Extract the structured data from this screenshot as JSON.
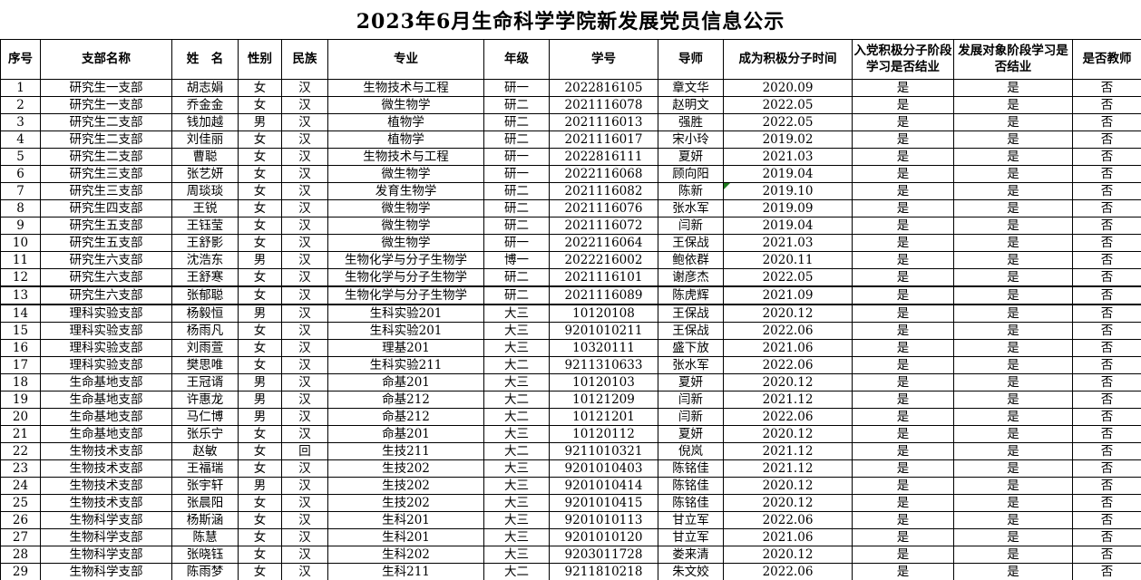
{
  "title": "2023年6月生命科学学院新发展党员信息公示",
  "table": {
    "columns": [
      "序号",
      "支部名称",
      "姓　名",
      "性别",
      "民族",
      "专业",
      "年级",
      "学号",
      "导师",
      "成为积极分子时间",
      "入党积极分子阶段学习是否结业",
      "发展对象阶段学习是否结业",
      "是否教师"
    ],
    "rows": [
      [
        "1",
        "研究生一支部",
        "胡志娟",
        "女",
        "汉",
        "生物技术与工程",
        "研一",
        "2022816105",
        "章文华",
        "2020.09",
        "是",
        "是",
        "否"
      ],
      [
        "2",
        "研究生一支部",
        "乔金金",
        "女",
        "汉",
        "微生物学",
        "研二",
        "2021116078",
        "赵明文",
        "2022.05",
        "是",
        "是",
        "否"
      ],
      [
        "3",
        "研究生二支部",
        "钱加越",
        "男",
        "汉",
        "植物学",
        "研二",
        "2021116013",
        "强胜",
        "2022.05",
        "是",
        "是",
        "否"
      ],
      [
        "4",
        "研究生二支部",
        "刘佳丽",
        "女",
        "汉",
        "植物学",
        "研二",
        "2021116017",
        "宋小玲",
        "2019.02",
        "是",
        "是",
        "否"
      ],
      [
        "5",
        "研究生二支部",
        "曹聪",
        "女",
        "汉",
        "生物技术与工程",
        "研一",
        "2022816111",
        "夏妍",
        "2021.03",
        "是",
        "是",
        "否"
      ],
      [
        "6",
        "研究生三支部",
        "张艺妍",
        "女",
        "汉",
        "微生物学",
        "研一",
        "2022116068",
        "顾向阳",
        "2019.04",
        "是",
        "是",
        "否"
      ],
      [
        "7",
        "研究生三支部",
        "周琰琰",
        "女",
        "汉",
        "发育生物学",
        "研二",
        "2021116082",
        "陈新",
        "2019.10",
        "是",
        "是",
        "否"
      ],
      [
        "8",
        "研究生四支部",
        "王锐",
        "女",
        "汉",
        "微生物学",
        "研二",
        "2021116076",
        "张水军",
        "2019.09",
        "是",
        "是",
        "否"
      ],
      [
        "9",
        "研究生五支部",
        "王钰莹",
        "女",
        "汉",
        "微生物学",
        "研二",
        "2021116072",
        "闫新",
        "2019.04",
        "是",
        "是",
        "否"
      ],
      [
        "10",
        "研究生五支部",
        "王舒影",
        "女",
        "汉",
        "微生物学",
        "研一",
        "2022116064",
        "王保战",
        "2021.03",
        "是",
        "是",
        "否"
      ],
      [
        "11",
        "研究生六支部",
        "沈浩东",
        "男",
        "汉",
        "生物化学与分子生物学",
        "博一",
        "2022216002",
        "鲍依群",
        "2020.11",
        "是",
        "是",
        "否"
      ],
      [
        "12",
        "研究生六支部",
        "王舒寒",
        "女",
        "汉",
        "生物化学与分子生物学",
        "研二",
        "2021116101",
        "谢彦杰",
        "2022.05",
        "是",
        "是",
        "否"
      ],
      [
        "13",
        "研究生六支部",
        "张郁聪",
        "女",
        "汉",
        "生物化学与分子生物学",
        "研二",
        "2021116089",
        "陈虎辉",
        "2021.09",
        "是",
        "是",
        "否"
      ],
      [
        "14",
        "理科实验支部",
        "杨毅恒",
        "男",
        "汉",
        "生科实验201",
        "大三",
        "10120108",
        "王保战",
        "2020.12",
        "是",
        "是",
        "否"
      ],
      [
        "15",
        "理科实验支部",
        "杨雨凡",
        "女",
        "汉",
        "生科实验201",
        "大三",
        "9201010211",
        "王保战",
        "2022.06",
        "是",
        "是",
        "否"
      ],
      [
        "16",
        "理科实验支部",
        "刘雨萱",
        "女",
        "汉",
        "理基201",
        "大三",
        "10320111",
        "盛下放",
        "2021.06",
        "是",
        "是",
        "否"
      ],
      [
        "17",
        "理科实验支部",
        "樊思唯",
        "女",
        "汉",
        "生科实验211",
        "大二",
        "9211310633",
        "张水军",
        "2022.06",
        "是",
        "是",
        "否"
      ],
      [
        "18",
        "生命基地支部",
        "王冠谞",
        "男",
        "汉",
        "命基201",
        "大三",
        "10120103",
        "夏妍",
        "2020.12",
        "是",
        "是",
        "否"
      ],
      [
        "19",
        "生命基地支部",
        "许惠龙",
        "男",
        "汉",
        "命基212",
        "大二",
        "10121209",
        "闫新",
        "2021.12",
        "是",
        "是",
        "否"
      ],
      [
        "20",
        "生命基地支部",
        "马仁博",
        "男",
        "汉",
        "命基212",
        "大二",
        "10121201",
        "闫新",
        "2022.06",
        "是",
        "是",
        "否"
      ],
      [
        "21",
        "生命基地支部",
        "张乐宁",
        "女",
        "汉",
        "命基201",
        "大三",
        "10120112",
        "夏妍",
        "2020.12",
        "是",
        "是",
        "否"
      ],
      [
        "22",
        "生物技术支部",
        "赵敏",
        "女",
        "回",
        "生技211",
        "大二",
        "9211010321",
        "倪岚",
        "2021.12",
        "是",
        "是",
        "否"
      ],
      [
        "23",
        "生物技术支部",
        "王福瑞",
        "女",
        "汉",
        "生技202",
        "大三",
        "9201010403",
        "陈铭佳",
        "2021.12",
        "是",
        "是",
        "否"
      ],
      [
        "24",
        "生物技术支部",
        "张宇轩",
        "男",
        "汉",
        "生技202",
        "大三",
        "9201010414",
        "陈铭佳",
        "2020.12",
        "是",
        "是",
        "否"
      ],
      [
        "25",
        "生物技术支部",
        "张晨阳",
        "女",
        "汉",
        "生技202",
        "大三",
        "9201010415",
        "陈铭佳",
        "2020.12",
        "是",
        "是",
        "否"
      ],
      [
        "26",
        "生物科学支部",
        "杨斯涵",
        "女",
        "汉",
        "生科201",
        "大三",
        "9201010113",
        "甘立军",
        "2022.06",
        "是",
        "是",
        "否"
      ],
      [
        "27",
        "生物科学支部",
        "陈慧",
        "女",
        "汉",
        "生科201",
        "大三",
        "9201010120",
        "甘立军",
        "2021.06",
        "是",
        "是",
        "否"
      ],
      [
        "28",
        "生物科学支部",
        "张晓钰",
        "女",
        "汉",
        "生科202",
        "大三",
        "9203011728",
        "娄来清",
        "2020.12",
        "是",
        "是",
        "否"
      ],
      [
        "29",
        "生物科学支部",
        "陈雨梦",
        "女",
        "汉",
        "生科211",
        "大二",
        "9211810218",
        "朱文姣",
        "2022.06",
        "是",
        "是",
        "否"
      ]
    ],
    "flag_cell": {
      "row_index": 6,
      "col_index": 9,
      "color": "#1e7a1e"
    },
    "thick_border_after_rows": [
      11,
      12
    ]
  }
}
